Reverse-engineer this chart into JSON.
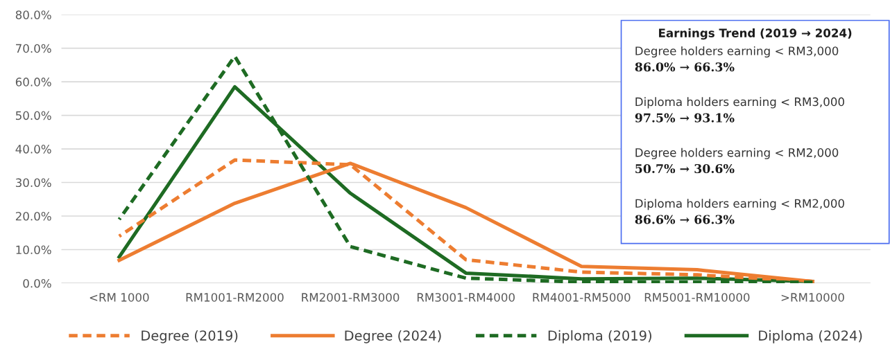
{
  "chart_data": {
    "type": "line",
    "categories": [
      "<RM 1000",
      "RM1001-RM2000",
      "RM2001-RM3000",
      "RM3001-RM4000",
      "RM4001-RM5000",
      "RM5001-RM10000",
      ">RM10000"
    ],
    "series": [
      {
        "name": "Degree (2019)",
        "color": "#ed7d31",
        "line_style": "dashed",
        "values": [
          14.0,
          36.7,
          35.3,
          7.0,
          3.3,
          2.5,
          0.5
        ]
      },
      {
        "name": "Degree (2024)",
        "color": "#ed7d31",
        "line_style": "solid",
        "values": [
          6.8,
          23.8,
          35.7,
          22.5,
          5.0,
          4.0,
          0.5
        ]
      },
      {
        "name": "Diploma (2019)",
        "color": "#1e6b23",
        "line_style": "dashed",
        "values": [
          19.0,
          67.6,
          10.9,
          1.5,
          0.3,
          0.3,
          0.3
        ]
      },
      {
        "name": "Diploma (2024)",
        "color": "#1e6b23",
        "line_style": "solid",
        "values": [
          7.8,
          58.5,
          26.8,
          3.0,
          1.3,
          1.5,
          0.5
        ]
      }
    ],
    "ylim": [
      0,
      80
    ],
    "yticks": [
      {
        "value": 0,
        "label": "0.0%"
      },
      {
        "value": 10,
        "label": "10.0%"
      },
      {
        "value": 20,
        "label": "20.0%"
      },
      {
        "value": 30,
        "label": "30.0%"
      },
      {
        "value": 40,
        "label": "40.0%"
      },
      {
        "value": 50,
        "label": "50.0%"
      },
      {
        "value": 60,
        "label": "60.0%"
      },
      {
        "value": 70,
        "label": "70.0%"
      },
      {
        "value": 80,
        "label": "80.0%"
      }
    ],
    "grid": "y",
    "legend": "bottom",
    "marker": "none",
    "annotations": [
      "Earnings Trend (2019 → 2024)",
      "Degree holders earning < RM3,000",
      "86.0% → 66.3%",
      "Diploma holders earning < RM3,000",
      "97.5% → 93.1%",
      "Degree holders earning < RM2,000",
      "50.7% → 30.6%",
      "Diploma holders earning < RM2,000",
      "86.6% → 66.3%"
    ]
  }
}
